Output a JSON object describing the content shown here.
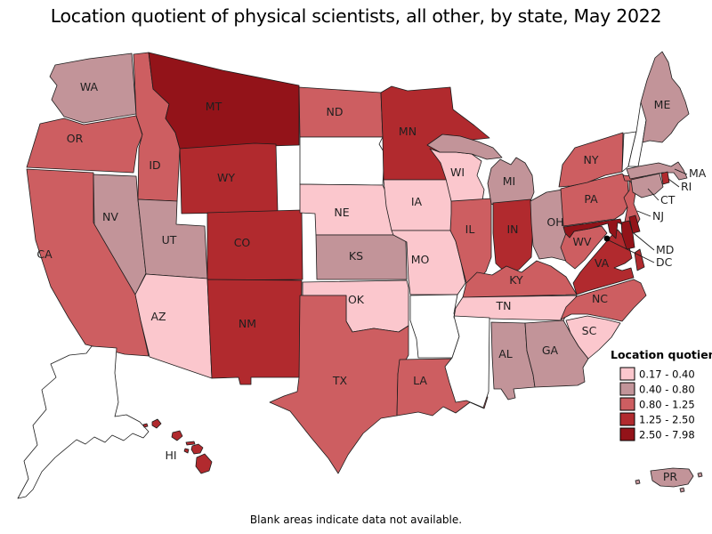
{
  "title": "Location quotient of physical scientists, all other, by state, May 2022",
  "footnote": "Blank areas indicate data not available.",
  "legend": {
    "title": "Location quotient",
    "no_data_color": "#ffffff",
    "bands": [
      {
        "id": "b1",
        "label": "0.17 - 0.40",
        "color": "#fbc7cd"
      },
      {
        "id": "b2",
        "label": "0.40 - 0.80",
        "color": "#c29499"
      },
      {
        "id": "b3",
        "label": "0.80 - 1.25",
        "color": "#cd5e61"
      },
      {
        "id": "b4",
        "label": "1.25 - 2.50",
        "color": "#b12a2e"
      },
      {
        "id": "b5",
        "label": "2.50 - 7.98",
        "color": "#931319"
      }
    ]
  },
  "chart_data": {
    "type": "choropleth",
    "title": "Location quotient of physical scientists, all other, by state, May 2022",
    "value_range": [
      0.17,
      7.98
    ],
    "states": [
      {
        "abbr": "WA",
        "band": "b2"
      },
      {
        "abbr": "OR",
        "band": "b3"
      },
      {
        "abbr": "CA",
        "band": "b3"
      },
      {
        "abbr": "NV",
        "band": "b2"
      },
      {
        "abbr": "ID",
        "band": "b3"
      },
      {
        "abbr": "MT",
        "band": "b5"
      },
      {
        "abbr": "WY",
        "band": "b4"
      },
      {
        "abbr": "UT",
        "band": "b2"
      },
      {
        "abbr": "CO",
        "band": "b4"
      },
      {
        "abbr": "AZ",
        "band": "b1"
      },
      {
        "abbr": "NM",
        "band": "b4"
      },
      {
        "abbr": "ND",
        "band": "b3"
      },
      {
        "abbr": "SD",
        "band": "no_data"
      },
      {
        "abbr": "NE",
        "band": "b1"
      },
      {
        "abbr": "KS",
        "band": "b2"
      },
      {
        "abbr": "OK",
        "band": "b1"
      },
      {
        "abbr": "TX",
        "band": "b3"
      },
      {
        "abbr": "MN",
        "band": "b4"
      },
      {
        "abbr": "IA",
        "band": "b1"
      },
      {
        "abbr": "MO",
        "band": "b1"
      },
      {
        "abbr": "AR",
        "band": "no_data"
      },
      {
        "abbr": "LA",
        "band": "b3"
      },
      {
        "abbr": "WI",
        "band": "b1"
      },
      {
        "abbr": "IL",
        "band": "b3"
      },
      {
        "abbr": "MI",
        "band": "b2"
      },
      {
        "abbr": "IN",
        "band": "b4"
      },
      {
        "abbr": "OH",
        "band": "b2"
      },
      {
        "abbr": "KY",
        "band": "b3"
      },
      {
        "abbr": "TN",
        "band": "b1"
      },
      {
        "abbr": "MS",
        "band": "no_data"
      },
      {
        "abbr": "AL",
        "band": "b2"
      },
      {
        "abbr": "GA",
        "band": "b2"
      },
      {
        "abbr": "FL",
        "band": "b1"
      },
      {
        "abbr": "SC",
        "band": "b1"
      },
      {
        "abbr": "NC",
        "band": "b3"
      },
      {
        "abbr": "VA",
        "band": "b4"
      },
      {
        "abbr": "WV",
        "band": "b3"
      },
      {
        "abbr": "PA",
        "band": "b3"
      },
      {
        "abbr": "NY",
        "band": "b3"
      },
      {
        "abbr": "NJ",
        "band": "b3"
      },
      {
        "abbr": "VT",
        "band": "no_data"
      },
      {
        "abbr": "NH",
        "band": "no_data"
      },
      {
        "abbr": "ME",
        "band": "b2"
      },
      {
        "abbr": "MA",
        "band": "b2"
      },
      {
        "abbr": "RI",
        "band": "b4"
      },
      {
        "abbr": "CT",
        "band": "b2"
      },
      {
        "abbr": "MD",
        "band": "b5"
      },
      {
        "abbr": "DE",
        "band": "b5"
      },
      {
        "abbr": "DC",
        "marker": true
      },
      {
        "abbr": "AK",
        "band": "no_data"
      },
      {
        "abbr": "HI",
        "band": "b4"
      },
      {
        "abbr": "PR",
        "band": "b2"
      }
    ]
  }
}
